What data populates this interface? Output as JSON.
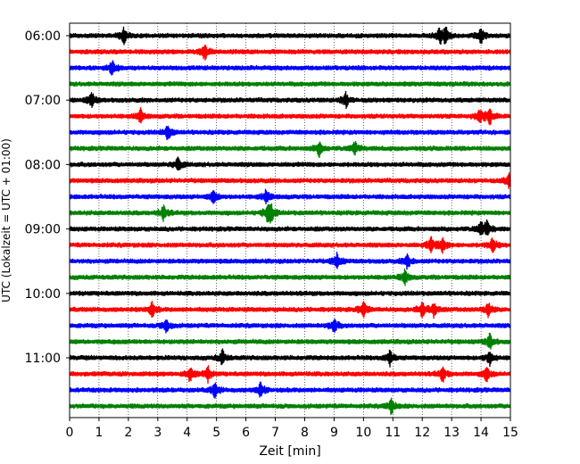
{
  "chart_data": {
    "type": "line",
    "title": "",
    "xlabel": "Zeit  [min]",
    "ylabel": "UTC (Lokalzeit = UTC + 01:00)",
    "xlim": [
      0,
      15
    ],
    "x_ticks": [
      "0",
      "1",
      "2",
      "3",
      "4",
      "5",
      "6",
      "7",
      "8",
      "9",
      "10",
      "11",
      "12",
      "13",
      "14",
      "15"
    ],
    "y_ticks": [
      "06:00",
      "07:00",
      "08:00",
      "09:00",
      "10:00",
      "11:00"
    ],
    "y_start": "06:00",
    "row_interval_min": 15,
    "row_count": 24,
    "grid": "vertical dotted at each minute",
    "legend": "none",
    "series_colors": [
      "#000000",
      "#ff0000",
      "#0000ff",
      "#008000"
    ],
    "events": [
      {
        "row": 0,
        "minutes": [
          1.85,
          12.6,
          12.8,
          14.0
        ]
      },
      {
        "row": 1,
        "minutes": [
          4.6
        ]
      },
      {
        "row": 2,
        "minutes": [
          1.45
        ]
      },
      {
        "row": 3,
        "minutes": []
      },
      {
        "row": 4,
        "minutes": [
          0.75,
          9.4
        ]
      },
      {
        "row": 5,
        "minutes": [
          2.4,
          13.95,
          14.3
        ]
      },
      {
        "row": 6,
        "minutes": [
          3.35
        ]
      },
      {
        "row": 7,
        "minutes": [
          8.5,
          9.7
        ]
      },
      {
        "row": 8,
        "minutes": [
          3.7
        ]
      },
      {
        "row": 9,
        "minutes": [
          14.95
        ]
      },
      {
        "row": 10,
        "minutes": [
          6.7,
          4.9
        ]
      },
      {
        "row": 11,
        "minutes": [
          3.2,
          6.75,
          6.85
        ]
      },
      {
        "row": 12,
        "minutes": [
          14.0,
          14.2
        ]
      },
      {
        "row": 13,
        "minutes": [
          12.3,
          12.7,
          14.4
        ]
      },
      {
        "row": 14,
        "minutes": [
          9.1,
          11.5
        ]
      },
      {
        "row": 15,
        "minutes": [
          11.4
        ]
      },
      {
        "row": 16,
        "minutes": []
      },
      {
        "row": 17,
        "minutes": [
          2.8,
          12.0,
          12.4,
          14.25,
          10.0
        ]
      },
      {
        "row": 18,
        "minutes": [
          3.3,
          9.0
        ]
      },
      {
        "row": 19,
        "minutes": [
          14.3
        ]
      },
      {
        "row": 20,
        "minutes": [
          5.2,
          10.9,
          14.3
        ]
      },
      {
        "row": 21,
        "minutes": [
          4.1,
          4.7,
          12.7,
          14.2
        ]
      },
      {
        "row": 22,
        "minutes": [
          4.95,
          6.5
        ]
      },
      {
        "row": 23,
        "minutes": [
          10.95
        ]
      }
    ]
  }
}
